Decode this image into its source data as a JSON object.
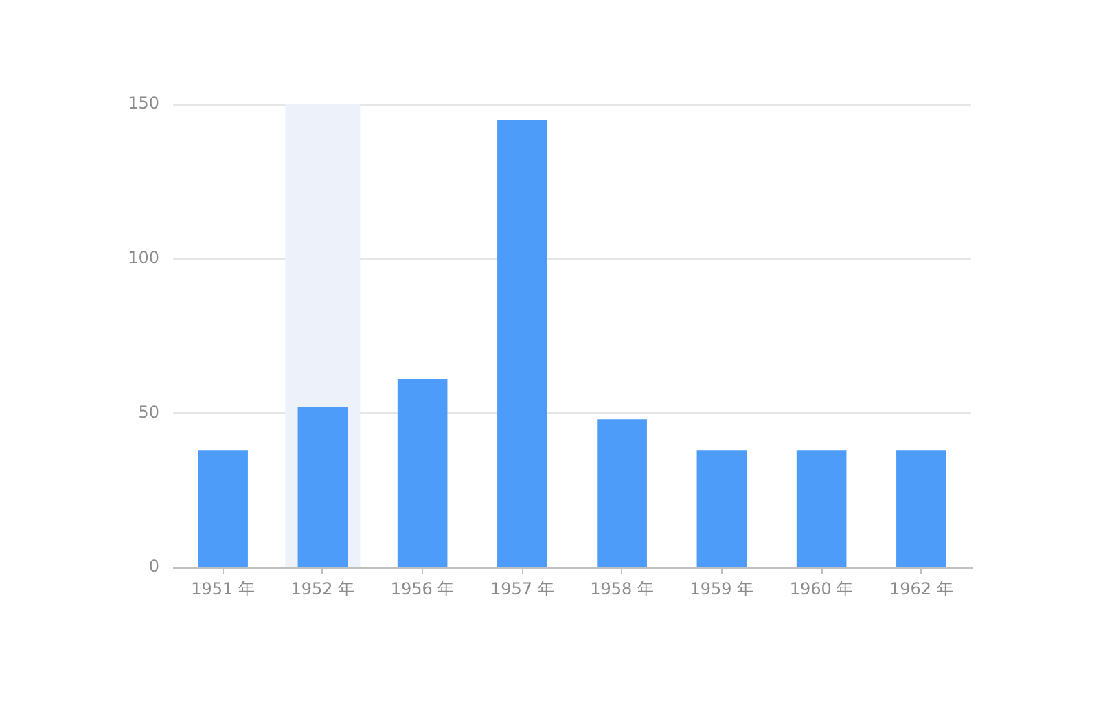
{
  "chart_data": {
    "type": "bar",
    "categories": [
      "1951 年",
      "1952 年",
      "1956 年",
      "1957 年",
      "1958 年",
      "1959 年",
      "1960 年",
      "1962 年"
    ],
    "values": [
      38,
      52,
      61,
      145,
      48,
      38,
      38,
      38
    ],
    "color": "#4d9cf9",
    "ylim": [
      0,
      150
    ],
    "yticks": [
      0,
      50,
      100,
      150
    ],
    "grid": "y",
    "bands": [
      {
        "axis": "x",
        "from": "1952 年",
        "to": "1952 年",
        "color": "#edf1f9"
      }
    ]
  }
}
